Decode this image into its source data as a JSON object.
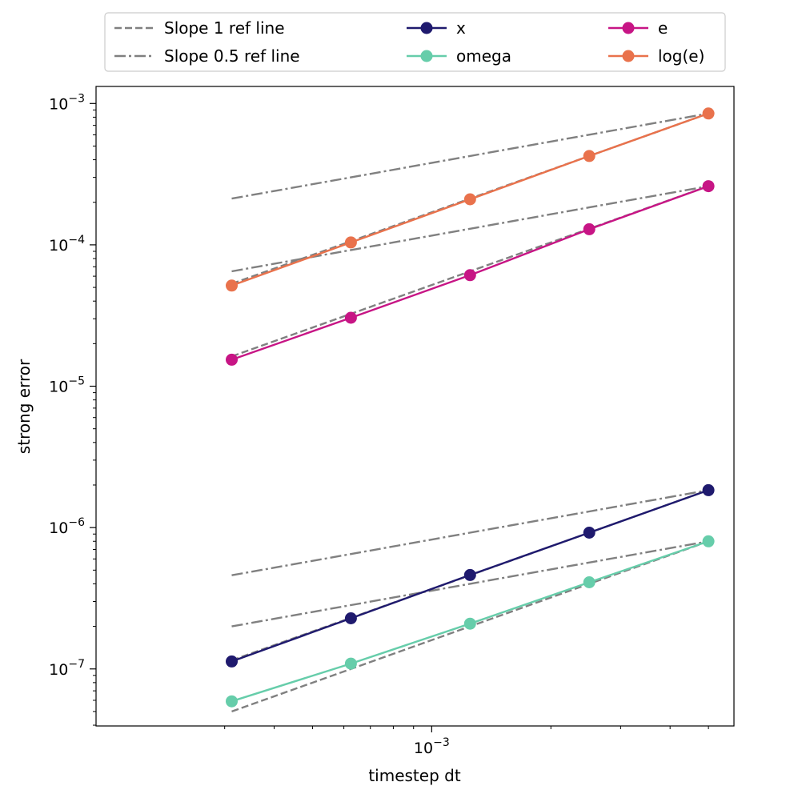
{
  "chart_data": {
    "type": "line",
    "xscale": "log",
    "yscale": "log",
    "xlabel": "timestep dt",
    "ylabel": "strong error",
    "xlim": [
      0.000142,
      0.0058
    ],
    "ylim": [
      3.95e-08,
      0.00132
    ],
    "x": [
      0.0003125,
      0.000625,
      0.00125,
      0.0025,
      0.005
    ],
    "x_major_ticks": [
      {
        "value": 0.001,
        "base": "10",
        "exp": "−3"
      }
    ],
    "x_minor_ticks": [
      0.0003,
      0.0004,
      0.0005,
      0.0006,
      0.0007,
      0.0008,
      0.0009,
      0.002,
      0.003,
      0.004,
      0.005
    ],
    "y_major_ticks": [
      {
        "value": 1e-07,
        "base": "10",
        "exp": "−7"
      },
      {
        "value": 1e-06,
        "base": "10",
        "exp": "−6"
      },
      {
        "value": 1e-05,
        "base": "10",
        "exp": "−5"
      },
      {
        "value": 0.0001,
        "base": "10",
        "exp": "−4"
      },
      {
        "value": 0.001,
        "base": "10",
        "exp": "−3"
      }
    ],
    "series": [
      {
        "name": "x",
        "color": "#1f1a6e",
        "values": [
          1.13e-07,
          2.28e-07,
          4.62e-07,
          9.2e-07,
          1.84e-06
        ]
      },
      {
        "name": "omega",
        "color": "#66cdaa",
        "values": [
          5.9e-08,
          1.09e-07,
          2.09e-07,
          4.1e-07,
          8e-07
        ]
      },
      {
        "name": "e",
        "color": "#c71585",
        "values": [
          1.54e-05,
          3.05e-05,
          6.1e-05,
          0.000129,
          0.00026
        ]
      },
      {
        "name": "log(e)",
        "color": "#e9724c",
        "values": [
          5.15e-05,
          0.000104,
          0.00021,
          0.000425,
          0.00085
        ]
      }
    ],
    "reference_lines": [
      {
        "name": "Slope 1 ref line",
        "style": "dashed",
        "color": "#808080",
        "values": [
          1.15e-07,
          2.3e-07,
          4.6e-07,
          9.2e-07,
          1.84e-06
        ]
      },
      {
        "name": "Slope 0.5 ref line",
        "style": "dashdot",
        "color": "#808080",
        "values": [
          4.6e-07,
          6.5e-07,
          9.2e-07,
          1.3e-06,
          1.84e-06
        ]
      },
      {
        "name": "Slope 1 ref line",
        "style": "dashed",
        "color": "#808080",
        "values": [
          5e-08,
          1e-07,
          2e-07,
          4e-07,
          8e-07
        ]
      },
      {
        "name": "Slope 0.5 ref line",
        "style": "dashdot",
        "color": "#808080",
        "values": [
          2e-07,
          2.83e-07,
          4e-07,
          5.66e-07,
          8e-07
        ]
      },
      {
        "name": "Slope 1 ref line",
        "style": "dashed",
        "color": "#808080",
        "values": [
          1.625e-05,
          3.25e-05,
          6.5e-05,
          0.00013,
          0.00026
        ]
      },
      {
        "name": "Slope 0.5 ref line",
        "style": "dashdot",
        "color": "#808080",
        "values": [
          6.5e-05,
          9.19e-05,
          0.00013,
          0.000184,
          0.00026
        ]
      },
      {
        "name": "Slope 1 ref line",
        "style": "dashed",
        "color": "#808080",
        "values": [
          5.31e-05,
          0.000106,
          0.0002125,
          0.000425,
          0.00085
        ]
      },
      {
        "name": "Slope 0.5 ref line",
        "style": "dashdot",
        "color": "#808080",
        "values": [
          0.0002125,
          0.0003,
          0.000425,
          0.000601,
          0.00085
        ]
      }
    ],
    "legend": {
      "placement": "top-center, outside axes",
      "columns": 3,
      "entries": [
        {
          "label": "Slope 1 ref line",
          "kind": "dashed",
          "color": "#808080"
        },
        {
          "label": "Slope 0.5 ref line",
          "kind": "dashdot",
          "color": "#808080"
        },
        {
          "label": "x",
          "kind": "marker",
          "color": "#1f1a6e"
        },
        {
          "label": "omega",
          "kind": "marker",
          "color": "#66cdaa"
        },
        {
          "label": "e",
          "kind": "marker",
          "color": "#c71585"
        },
        {
          "label": "log(e)",
          "kind": "marker",
          "color": "#e9724c"
        }
      ]
    }
  }
}
